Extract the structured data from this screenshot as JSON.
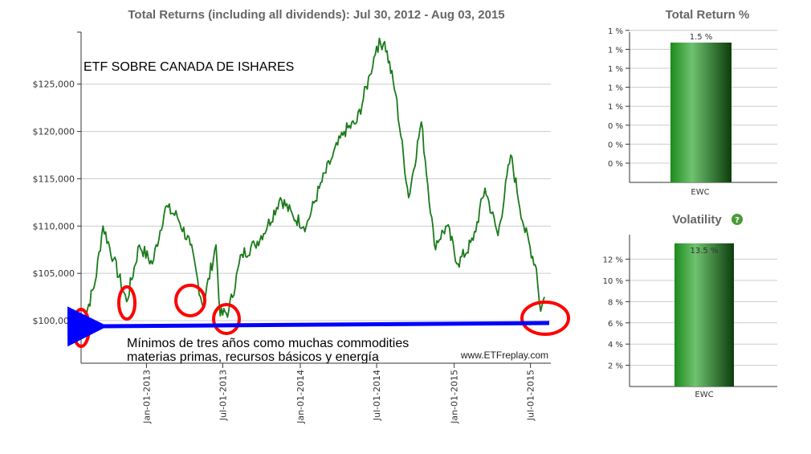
{
  "main_chart": {
    "title": "Total Returns (including all dividends): Jul 30, 2012 - Aug 03, 2015",
    "y_ticks": [
      "$100,000",
      "$105,000",
      "$110,000",
      "$115,000",
      "$120,000",
      "$125,000"
    ],
    "x_ticks": [
      "Jan-01-2013",
      "Jul-01-2013",
      "Jan-01-2014",
      "Jul-01-2014",
      "Jan-01-2015",
      "Jul-01-2015"
    ],
    "annotation_title": "ETF SOBRE CANADA DE ISHARES",
    "annotation_text_line1": "Mínimos de tres años como muchas commodities",
    "annotation_text_line2": "materias primas, recursos básicos y energía",
    "watermark": "www.ETFreplay.com",
    "colors": {
      "line": "#1a7a1a",
      "circle": "#ff0000",
      "arrow": "#0000ff",
      "grid": "#cccccc"
    }
  },
  "chart_data": [
    {
      "type": "line",
      "title": "Total Returns (including all dividends): Jul 30, 2012 - Aug 03, 2015",
      "ylim": [
        95500,
        130500
      ],
      "grid": true,
      "x": [
        "2012-07-30",
        "2012-09-01",
        "2012-09-20",
        "2012-10-15",
        "2012-11-15",
        "2012-12-15",
        "2013-01-15",
        "2013-02-15",
        "2013-03-15",
        "2013-04-15",
        "2013-05-15",
        "2013-06-15",
        "2013-06-25",
        "2013-07-15",
        "2013-08-15",
        "2013-09-15",
        "2013-10-15",
        "2013-11-15",
        "2013-12-15",
        "2014-01-15",
        "2014-02-15",
        "2014-03-15",
        "2014-04-15",
        "2014-05-15",
        "2014-06-15",
        "2014-07-01",
        "2014-07-20",
        "2014-08-15",
        "2014-09-15",
        "2014-10-15",
        "2014-11-15",
        "2014-12-15",
        "2015-01-10",
        "2015-02-15",
        "2015-03-15",
        "2015-04-15",
        "2015-05-15",
        "2015-06-15",
        "2015-07-15",
        "2015-07-25",
        "2015-08-03"
      ],
      "series": [
        {
          "values": [
            99000,
            104000,
            110000,
            106500,
            102000,
            108000,
            106000,
            112000,
            111000,
            108000,
            101500,
            108000,
            100500,
            101000,
            107000,
            108000,
            110000,
            113000,
            111000,
            110000,
            114000,
            117000,
            120000,
            121000,
            126000,
            129000,
            129500,
            124000,
            113000,
            121000,
            108000,
            110000,
            106000,
            108500,
            114000,
            109000,
            117500,
            110000,
            105500,
            101000,
            102500
          ]
        }
      ]
    },
    {
      "type": "bar",
      "title": "Total Return %",
      "categories": [
        "EWC"
      ],
      "values": [
        1.5
      ],
      "data_labels": [
        "1.5 %"
      ],
      "y_ticks": [
        "0 %",
        "0 %",
        "0 %",
        "1 %",
        "1 %",
        "1 %",
        "1 %",
        "1 %"
      ],
      "ylim": [
        0,
        1.5
      ]
    },
    {
      "type": "bar",
      "title": "Volatility",
      "categories": [
        "EWC"
      ],
      "values": [
        13.5
      ],
      "data_labels": [
        "13.5 %"
      ],
      "y_ticks": [
        "2 %",
        "4 %",
        "6 %",
        "8 %",
        "10 %",
        "12 %"
      ],
      "ylim": [
        0,
        14
      ]
    }
  ]
}
